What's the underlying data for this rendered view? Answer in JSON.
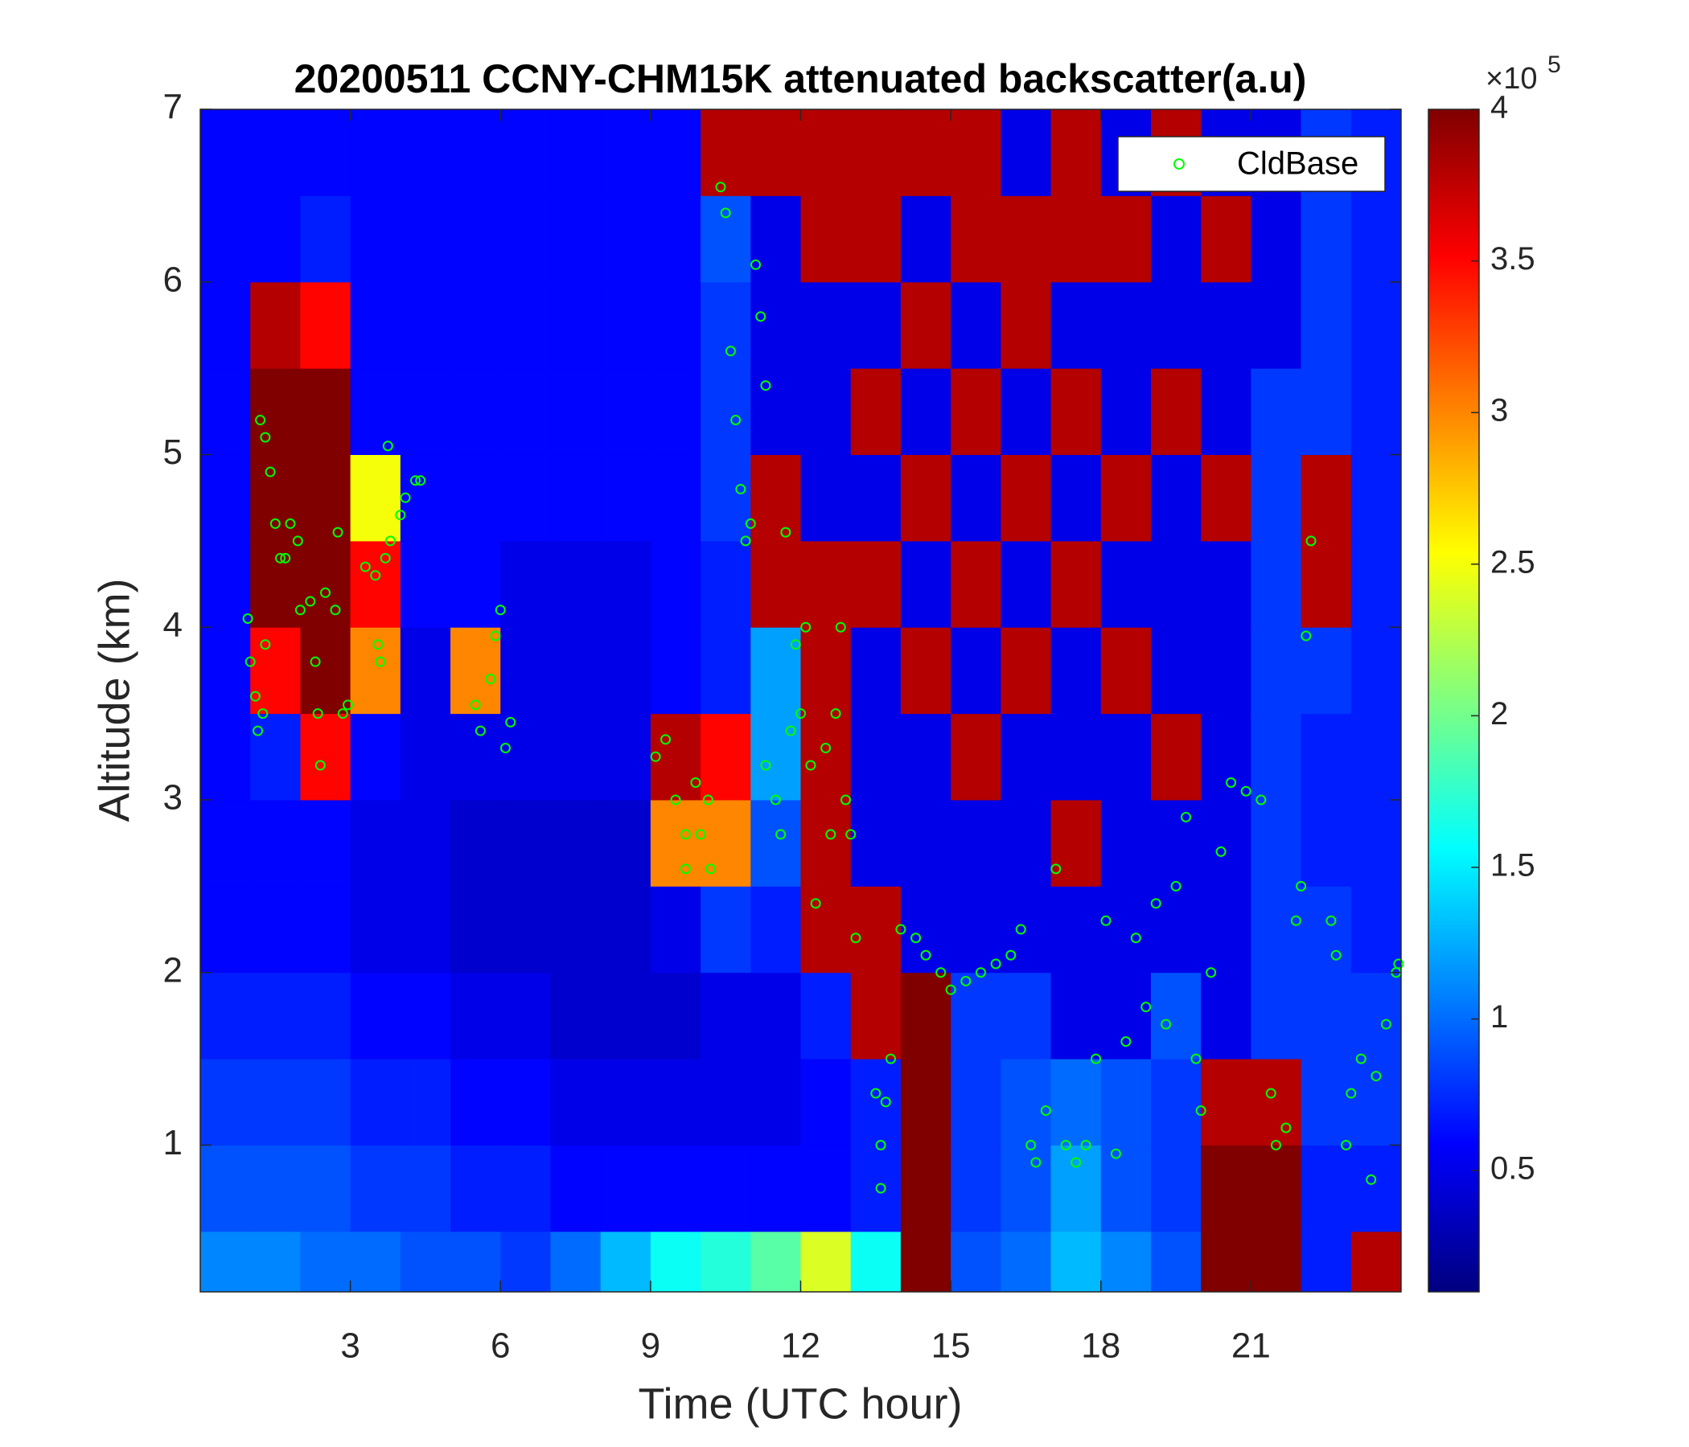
{
  "chart_data": {
    "type": "heatmap",
    "title": "20200511 CCNY-CHM15K attenuated backscatter(a.u)",
    "x_label": "Time (UTC hour)",
    "y_label": "Altitude (km)",
    "xlim": [
      0,
      24
    ],
    "xticks": [
      3,
      6,
      9,
      12,
      15,
      18,
      21
    ],
    "ylim": [
      0.15,
      7
    ],
    "yticks": [
      1,
      2,
      3,
      4,
      5,
      6,
      7
    ],
    "x_edges": [
      0,
      1,
      2,
      3,
      4,
      5,
      6,
      7,
      8,
      9,
      10,
      11,
      12,
      13,
      14,
      15,
      16,
      17,
      18,
      19,
      20,
      21,
      22,
      23,
      24
    ],
    "y_edges": [
      0.15,
      0.5,
      1,
      1.5,
      2,
      2.5,
      3,
      3.5,
      4,
      4.5,
      5,
      5.5,
      6,
      6.5,
      7
    ],
    "z": [
      [
        1.1,
        0.9,
        0.8,
        0.7,
        0.6,
        0.6,
        0.6,
        0.6,
        0.6,
        0.6,
        0.6,
        0.6,
        0.6,
        0.6
      ],
      [
        1.1,
        0.9,
        0.8,
        0.7,
        0.6,
        0.6,
        0.7,
        3.5,
        4,
        4,
        4,
        3.8,
        0.6,
        0.6
      ],
      [
        1.0,
        0.9,
        0.8,
        0.7,
        0.6,
        0.6,
        3.5,
        4,
        4,
        4,
        4,
        3.5,
        0.7,
        0.6
      ],
      [
        1.0,
        0.8,
        0.7,
        0.6,
        0.5,
        0.5,
        0.6,
        3,
        3.5,
        2.5,
        0.6,
        0.6,
        0.6,
        0.6
      ],
      [
        0.9,
        0.8,
        0.7,
        0.6,
        0.5,
        0.5,
        0.5,
        0.5,
        0.6,
        0.6,
        0.6,
        0.6,
        0.6,
        0.6
      ],
      [
        0.9,
        0.7,
        0.6,
        0.5,
        0.4,
        0.4,
        0.5,
        3,
        0.6,
        0.6,
        0.6,
        0.6,
        0.6,
        0.6
      ],
      [
        0.8,
        0.7,
        0.6,
        0.5,
        0.4,
        0.4,
        0.5,
        0.5,
        0.5,
        0.6,
        0.6,
        0.6,
        0.6,
        0.6
      ],
      [
        1.0,
        0.6,
        0.5,
        0.4,
        0.4,
        0.4,
        0.5,
        0.5,
        0.5,
        0.6,
        0.6,
        0.6,
        0.6,
        0.6
      ],
      [
        1.3,
        0.6,
        0.5,
        0.4,
        0.4,
        0.4,
        0.5,
        0.5,
        0.5,
        0.6,
        0.6,
        0.6,
        0.6,
        0.6
      ],
      [
        1.6,
        0.6,
        0.5,
        0.4,
        0.5,
        3,
        3.8,
        0.6,
        0.6,
        0.6,
        0.6,
        0.6,
        0.6,
        0.6
      ],
      [
        1.7,
        0.6,
        0.5,
        0.5,
        0.8,
        3,
        3.5,
        0.7,
        0.7,
        0.8,
        0.8,
        0.8,
        0.9,
        3.8
      ],
      [
        1.9,
        0.6,
        0.5,
        0.5,
        0.7,
        0.9,
        1.2,
        1.2,
        3.8,
        3.8,
        0.5,
        0.5,
        0.5,
        3.8
      ],
      [
        2.4,
        0.6,
        0.6,
        0.7,
        3.8,
        3.8,
        3.8,
        3.8,
        3.8,
        0.5,
        0.5,
        0.5,
        3.8,
        3.8
      ],
      [
        1.6,
        0.7,
        0.7,
        3.8,
        3.8,
        0.5,
        0.5,
        0.5,
        3.8,
        0.5,
        3.8,
        0.5,
        3.8,
        3.8
      ],
      [
        4,
        4,
        4,
        4,
        0.5,
        0.5,
        0.5,
        3.8,
        0.5,
        3.8,
        0.5,
        3.8,
        0.5,
        3.8
      ],
      [
        0.9,
        0.8,
        0.8,
        0.8,
        0.5,
        0.5,
        3.8,
        0.5,
        3.8,
        0.5,
        3.8,
        0.5,
        3.8,
        3.8
      ],
      [
        1.0,
        0.9,
        0.9,
        0.8,
        0.5,
        0.5,
        0.5,
        3.8,
        0.5,
        3.8,
        0.5,
        3.8,
        3.8,
        0.5
      ],
      [
        1.3,
        1.2,
        1.0,
        0.5,
        0.5,
        3.8,
        0.5,
        0.5,
        3.8,
        0.5,
        3.8,
        0.5,
        3.8,
        3.8
      ],
      [
        1.1,
        0.9,
        0.9,
        0.5,
        0.5,
        0.5,
        0.5,
        3.8,
        0.5,
        3.8,
        0.5,
        0.5,
        3.8,
        0.5
      ],
      [
        0.9,
        0.8,
        0.8,
        0.9,
        0.5,
        0.5,
        3.8,
        0.5,
        0.5,
        0.5,
        3.8,
        0.5,
        0.5,
        3.8
      ],
      [
        4,
        4,
        3.8,
        0.5,
        0.5,
        0.5,
        0.5,
        0.5,
        0.5,
        3.8,
        0.5,
        0.5,
        3.8,
        0.5
      ],
      [
        4,
        4,
        3.8,
        0.8,
        0.8,
        0.8,
        0.8,
        0.8,
        0.8,
        0.8,
        0.8,
        0.5,
        0.5,
        0.5
      ],
      [
        0.7,
        0.7,
        0.8,
        0.8,
        0.8,
        0.7,
        0.7,
        0.8,
        3.8,
        3.8,
        0.8,
        0.8,
        0.8,
        0.8
      ],
      [
        3.8,
        0.7,
        0.8,
        0.8,
        0.7,
        0.7,
        0.7,
        0.7,
        0.7,
        0.7,
        0.7,
        0.7,
        0.7,
        0.7
      ]
    ],
    "colormap": "jet",
    "clim": [
      0.1,
      4
    ],
    "colorbar_ticks": [
      0.5,
      1,
      1.5,
      2,
      2.5,
      3,
      3.5,
      4
    ],
    "colorbar_scale": {
      "base": "×10",
      "exponent": "5"
    },
    "legend": "northeast",
    "series": [
      {
        "name": "CldBase",
        "color": "#00ff00",
        "marker": "circle",
        "x": [
          0.95,
          1.0,
          1.1,
          1.15,
          1.25,
          1.3,
          1.2,
          1.3,
          1.4,
          1.5,
          1.6,
          1.7,
          1.8,
          1.95,
          2.0,
          2.2,
          2.3,
          2.35,
          2.4,
          2.5,
          2.7,
          2.85,
          2.95,
          2.75,
          3.3,
          3.5,
          3.55,
          3.6,
          3.7,
          3.8,
          3.75,
          4.0,
          4.1,
          4.3,
          4.4,
          5.5,
          5.6,
          5.8,
          5.9,
          6.0,
          6.1,
          6.2,
          9.1,
          9.3,
          9.5,
          9.7,
          9.9,
          10.0,
          10.15,
          10.2,
          9.7,
          10.4,
          10.5,
          10.6,
          10.7,
          10.8,
          10.9,
          11.0,
          11.1,
          11.2,
          11.3,
          11.3,
          11.5,
          11.6,
          11.7,
          11.8,
          11.9,
          12.0,
          12.1,
          12.2,
          12.3,
          12.5,
          12.6,
          12.7,
          12.8,
          12.9,
          13.0,
          13.1,
          13.5,
          13.6,
          13.7,
          13.6,
          13.8,
          14.0,
          14.3,
          14.5,
          14.8,
          15.0,
          15.3,
          15.6,
          15.9,
          16.2,
          16.4,
          16.6,
          16.7,
          16.9,
          17.1,
          17.3,
          17.5,
          17.7,
          17.9,
          18.1,
          18.3,
          18.5,
          18.7,
          18.9,
          19.1,
          19.3,
          19.5,
          19.7,
          19.9,
          20.0,
          20.2,
          20.4,
          20.6,
          20.9,
          21.2,
          21.4,
          21.5,
          21.7,
          21.9,
          22.0,
          22.1,
          22.2,
          22.6,
          22.7,
          22.9,
          23.0,
          23.2,
          23.4,
          23.5,
          23.7,
          23.9,
          23.95
        ],
        "values": [
          4.05,
          3.8,
          3.6,
          3.4,
          3.5,
          3.9,
          5.2,
          5.1,
          4.9,
          4.6,
          4.4,
          4.4,
          4.6,
          4.5,
          4.1,
          4.15,
          3.8,
          3.5,
          3.2,
          4.2,
          4.1,
          3.5,
          3.55,
          4.55,
          4.35,
          4.3,
          3.9,
          3.8,
          4.4,
          4.5,
          5.05,
          4.65,
          4.75,
          4.85,
          4.85,
          3.55,
          3.4,
          3.7,
          3.95,
          4.1,
          3.3,
          3.45,
          3.25,
          3.35,
          3.0,
          2.8,
          3.1,
          2.8,
          3.0,
          2.6,
          2.6,
          6.55,
          6.4,
          5.6,
          5.2,
          4.8,
          4.5,
          4.6,
          6.1,
          5.8,
          5.4,
          3.2,
          3.0,
          2.8,
          4.55,
          3.4,
          3.9,
          3.5,
          4.0,
          3.2,
          2.4,
          3.3,
          2.8,
          3.5,
          4.0,
          3.0,
          2.8,
          2.2,
          1.3,
          1.0,
          1.25,
          0.75,
          1.5,
          2.25,
          2.2,
          2.1,
          2.0,
          1.9,
          1.95,
          2.0,
          2.05,
          2.1,
          2.25,
          1.0,
          0.9,
          1.2,
          2.6,
          1.0,
          0.9,
          1.0,
          1.5,
          2.3,
          0.95,
          1.6,
          2.2,
          1.8,
          2.4,
          1.7,
          2.5,
          2.9,
          1.5,
          1.2,
          2.0,
          2.7,
          3.1,
          3.05,
          3.0,
          1.3,
          1.0,
          1.1,
          2.3,
          2.5,
          3.95,
          4.5,
          2.3,
          2.1,
          1.0,
          1.3,
          1.5,
          0.8,
          1.4,
          1.7,
          2.0,
          2.05
        ]
      }
    ]
  }
}
